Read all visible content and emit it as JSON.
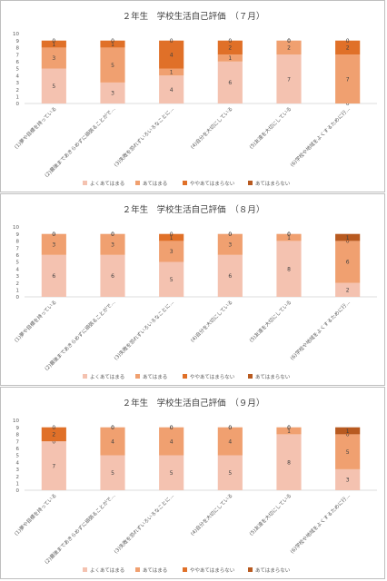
{
  "chart_data": [
    {
      "type": "bar",
      "stacked": true,
      "title": "２年生　学校生活自己評価　（７月）",
      "categories": [
        "(1)夢や目標を持っている",
        "(2)最後まであきらめずに頑張ることがで…",
        "(3)失敗を恐れずいろいろなことに…",
        "(4)自分を大切にしている",
        "(5)友達を大切にしている",
        "(6)学校や地域をよくするために行…"
      ],
      "ylim": [
        0,
        10
      ],
      "yticks": [
        0,
        1,
        2,
        3,
        4,
        5,
        6,
        7,
        8,
        9,
        10
      ],
      "grid": false,
      "legend_position": "bottom",
      "series": [
        {
          "name": "よくあてはまる",
          "color": "#f4c2b0",
          "values": [
            5,
            3,
            4,
            6,
            7,
            0
          ]
        },
        {
          "name": "あてはまる",
          "color": "#f0a070",
          "values": [
            3,
            5,
            1,
            1,
            2,
            7
          ]
        },
        {
          "name": "ややあてはまらない",
          "color": "#e07028",
          "values": [
            1,
            1,
            4,
            2,
            0,
            2
          ]
        },
        {
          "name": "あてはまらない",
          "color": "#b85a20",
          "values": [
            0,
            0,
            0,
            0,
            0,
            0
          ]
        }
      ]
    },
    {
      "type": "bar",
      "stacked": true,
      "title": "２年生　学校生活自己評価　（８月）",
      "categories": [
        "(1)夢や目標を持っている",
        "(2)最後まであきらめずに頑張ることがで…",
        "(3)失敗を恐れずいろいろなことに…",
        "(4)自分を大切にしている",
        "(5)友達を大切にしている",
        "(6)学校や地域をよくするために行…"
      ],
      "ylim": [
        0,
        10
      ],
      "yticks": [
        0,
        1,
        2,
        3,
        4,
        5,
        6,
        7,
        8,
        9,
        10
      ],
      "grid": false,
      "legend_position": "bottom",
      "series": [
        {
          "name": "よくあてはまる",
          "color": "#f4c2b0",
          "values": [
            6,
            6,
            5,
            6,
            8,
            2
          ]
        },
        {
          "name": "あてはまる",
          "color": "#f0a070",
          "values": [
            3,
            3,
            3,
            3,
            1,
            6
          ]
        },
        {
          "name": "ややあてはまらない",
          "color": "#e07028",
          "values": [
            0,
            0,
            1,
            0,
            0,
            0
          ]
        },
        {
          "name": "あてはまらない",
          "color": "#b85a20",
          "values": [
            0,
            0,
            0,
            0,
            0,
            1
          ]
        }
      ]
    },
    {
      "type": "bar",
      "stacked": true,
      "title": "２年生　学校生活自己評価　（９月）",
      "categories": [
        "(1)夢や目標を持っている",
        "(2)最後まであきらめずに頑張ることがで…",
        "(3)失敗を恐れずいろいろなことに…",
        "(4)自分を大切にしている",
        "(5)友達を大切にしている",
        "(6)学校や地域をよくするために行…"
      ],
      "ylim": [
        0,
        10
      ],
      "yticks": [
        0,
        1,
        2,
        3,
        4,
        5,
        6,
        7,
        8,
        9,
        10
      ],
      "grid": false,
      "legend_position": "bottom",
      "series": [
        {
          "name": "よくあてはまる",
          "color": "#f4c2b0",
          "values": [
            7,
            5,
            5,
            5,
            8,
            3
          ]
        },
        {
          "name": "あてはまる",
          "color": "#f0a070",
          "values": [
            0,
            4,
            4,
            4,
            1,
            5
          ]
        },
        {
          "name": "ややあてはまらない",
          "color": "#e07028",
          "values": [
            2,
            0,
            0,
            0,
            0,
            0
          ]
        },
        {
          "name": "あてはまらない",
          "color": "#b85a20",
          "values": [
            0,
            0,
            0,
            0,
            0,
            1
          ]
        }
      ]
    }
  ]
}
